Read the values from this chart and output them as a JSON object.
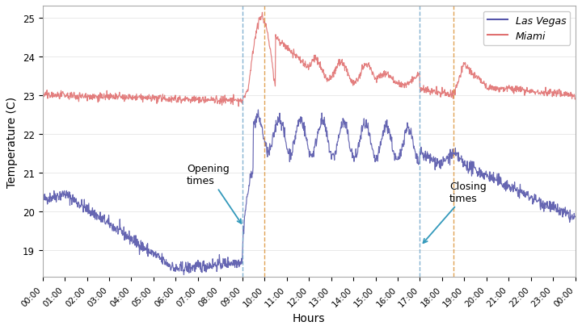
{
  "title": "",
  "xlabel": "Hours",
  "ylabel": "Temperature (C)",
  "ylim": [
    18.3,
    25.3
  ],
  "xlim": [
    0,
    1440
  ],
  "yticks": [
    19,
    20,
    21,
    22,
    23,
    24,
    25
  ],
  "xticks": [
    0,
    60,
    120,
    180,
    240,
    300,
    360,
    420,
    480,
    540,
    600,
    660,
    720,
    780,
    840,
    900,
    960,
    1020,
    1080,
    1140,
    1200,
    1260,
    1320,
    1380,
    1440
  ],
  "xtick_labels": [
    "00:00",
    "01:00",
    "02:00",
    "03:00",
    "04:00",
    "05:00",
    "06:00",
    "07:00",
    "08:00",
    "09:00",
    "10:00",
    "11:00",
    "12:00",
    "13:00",
    "14:00",
    "15:00",
    "16:00",
    "17:00",
    "18:00",
    "19:00",
    "20:00",
    "21:00",
    "22:00",
    "23:00",
    "00:00"
  ],
  "lv_color": "#5555aa",
  "miami_color": "#e07070",
  "vline_blue1": 540,
  "vline_orange1": 600,
  "vline_blue2": 1020,
  "vline_orange2": 1110,
  "vline_blue_color": "#77aacc",
  "vline_orange_color": "#dd9944",
  "legend_lv": "Las Vegas",
  "legend_miami": "Miami",
  "annotation_opening": "Opening\ntimes",
  "annotation_closing": "Closing\ntimes",
  "background_color": "#ffffff",
  "grid_color": "#e5e5e5",
  "noise_seed": 42,
  "lv_noise_std": 0.08,
  "miami_noise_std": 0.05
}
